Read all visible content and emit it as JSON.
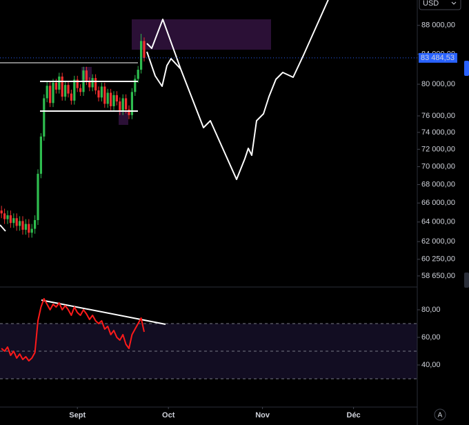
{
  "chart_data": [
    {
      "type": "candlestick",
      "x": [
        219,
        220,
        221,
        222,
        223,
        224,
        225,
        226,
        227,
        228,
        229,
        230,
        231,
        232,
        233,
        234,
        235,
        236,
        237,
        238,
        239,
        240,
        241,
        242,
        243,
        244,
        245,
        246,
        247,
        248,
        249,
        250,
        251,
        252,
        253,
        254,
        255,
        256,
        257,
        258,
        259,
        260,
        261,
        262,
        263,
        264,
        265,
        266
      ],
      "open": [
        65200,
        64900,
        64300,
        64700,
        63900,
        64400,
        63600,
        64100,
        63200,
        63800,
        62900,
        63300,
        64200,
        69200,
        73500,
        78200,
        79800,
        77600,
        80200,
        79300,
        81000,
        78400,
        79900,
        78800,
        77900,
        80600,
        79500,
        79000,
        81800,
        80400,
        79600,
        80800,
        79200,
        78300,
        79700,
        77500,
        78900,
        77200,
        78600,
        77800,
        76600,
        78200,
        76800,
        76100,
        79000,
        80700,
        81900,
        85800
      ],
      "high": [
        65700,
        65400,
        65200,
        65200,
        64900,
        64900,
        64600,
        64600,
        64300,
        64300,
        63800,
        64700,
        69700,
        73900,
        78700,
        80300,
        80300,
        80700,
        80700,
        81500,
        81500,
        80400,
        80400,
        79300,
        81100,
        81100,
        80000,
        82300,
        82300,
        80900,
        81300,
        81300,
        79700,
        80200,
        80200,
        79400,
        79400,
        79100,
        79100,
        78300,
        78700,
        78700,
        77300,
        79500,
        81200,
        82400,
        86800,
        86300
      ],
      "low": [
        64400,
        63800,
        63800,
        63400,
        63400,
        63100,
        63100,
        62700,
        62700,
        62400,
        62400,
        62800,
        63700,
        68700,
        73000,
        77700,
        77100,
        77100,
        78800,
        78800,
        77900,
        77900,
        78300,
        77400,
        77400,
        79000,
        78500,
        78500,
        79900,
        79100,
        79100,
        78700,
        77800,
        77800,
        77000,
        77000,
        76700,
        76700,
        77300,
        76100,
        76100,
        76300,
        75600,
        75600,
        78500,
        80200,
        81400,
        83000
      ],
      "close": [
        64900,
        64300,
        64700,
        63900,
        64400,
        63600,
        64100,
        63200,
        63800,
        62900,
        63300,
        64200,
        69200,
        73500,
        78200,
        79800,
        77600,
        80200,
        79300,
        81000,
        78400,
        79900,
        78800,
        77900,
        80600,
        79500,
        79000,
        81800,
        80400,
        79600,
        80800,
        79200,
        78300,
        79700,
        77500,
        78900,
        77200,
        78600,
        77800,
        76600,
        78200,
        76800,
        76100,
        79000,
        80700,
        81900,
        85800,
        83484.53
      ],
      "up_color": "#2ebd4f",
      "down_color": "#f23030",
      "log_scale": true,
      "xlim": [
        218.5,
        356
      ],
      "xticks": [
        {
          "value": 244,
          "label": "Sept"
        },
        {
          "value": 274,
          "label": "Oct"
        },
        {
          "value": 305,
          "label": "Nov"
        },
        {
          "value": 335,
          "label": "Déc"
        }
      ],
      "ylim": [
        57670,
        91690
      ],
      "yticks": [
        {
          "value": 88000,
          "label": "88 000,00"
        },
        {
          "value": 84000,
          "label": "84 000,00"
        },
        {
          "value": 80000,
          "label": "80 000,00"
        },
        {
          "value": 76000,
          "label": "76 000,00"
        },
        {
          "value": 74000,
          "label": "74 000,00"
        },
        {
          "value": 72000,
          "label": "72 000,00"
        },
        {
          "value": 70000,
          "label": "70 000,00"
        },
        {
          "value": 68000,
          "label": "68 000,00"
        },
        {
          "value": 66000,
          "label": "66 000,00"
        },
        {
          "value": 64000,
          "label": "64 000,00"
        },
        {
          "value": 62000,
          "label": "62 000,00"
        },
        {
          "value": 60250,
          "label": "60 250,00"
        },
        {
          "value": 58650,
          "label": "58 650,00"
        }
      ],
      "last_price": {
        "value": 83484.53,
        "label": "83 484,53"
      }
    },
    {
      "type": "line",
      "x": [
        219,
        220,
        221,
        222,
        223,
        224,
        225,
        226,
        227,
        228,
        229,
        230,
        231,
        232,
        233,
        234,
        235,
        236,
        237,
        238,
        239,
        240,
        241,
        242,
        243,
        244,
        245,
        246,
        247,
        248,
        249,
        250,
        251,
        252,
        253,
        254,
        255,
        256,
        257,
        258,
        259,
        260,
        261,
        262,
        263,
        264,
        265,
        266
      ],
      "series": [
        {
          "color": "#ff1a1a",
          "values": [
            52,
            50,
            53,
            47,
            50,
            45,
            48,
            44,
            46,
            43,
            45,
            49,
            72,
            82,
            88,
            84,
            80,
            84,
            82,
            85,
            80,
            83,
            80,
            76,
            82,
            78,
            76,
            80,
            77,
            73,
            76,
            72,
            70,
            72,
            66,
            68,
            62,
            65,
            60,
            58,
            62,
            55,
            52,
            62,
            66,
            70,
            74,
            64
          ]
        }
      ],
      "levels": [
        70,
        50,
        30
      ],
      "xlim": [
        218.5,
        356
      ],
      "ylim": [
        9.5,
        96.5
      ],
      "yticks": [
        {
          "value": 80,
          "label": "80,00"
        },
        {
          "value": 60,
          "label": "60,00"
        },
        {
          "value": 40,
          "label": "40,00"
        }
      ]
    }
  ],
  "ui": {
    "currency": "USD",
    "auto_button": "A"
  }
}
